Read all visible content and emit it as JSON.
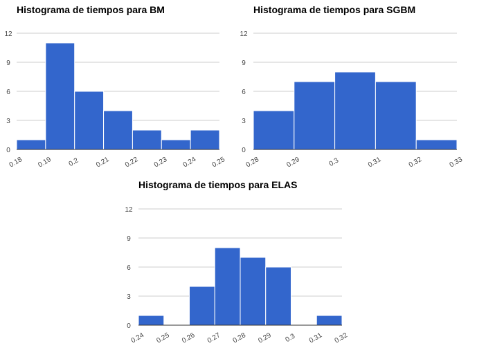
{
  "chart_data": [
    {
      "type": "bar",
      "title": "Histograma de tiempos para BM",
      "x_tick_labels": [
        "0.18",
        "0.19",
        "0.2",
        "0.21",
        "0.22",
        "0.23",
        "0.24",
        "0.25"
      ],
      "y_tick_labels": [
        "0",
        "3",
        "6",
        "9",
        "12"
      ],
      "bins": [
        {
          "from": 0.18,
          "to": 0.19,
          "count": 1
        },
        {
          "from": 0.19,
          "to": 0.2,
          "count": 11
        },
        {
          "from": 0.2,
          "to": 0.21,
          "count": 6
        },
        {
          "from": 0.21,
          "to": 0.22,
          "count": 4
        },
        {
          "from": 0.22,
          "to": 0.23,
          "count": 2
        },
        {
          "from": 0.23,
          "to": 0.24,
          "count": 1
        },
        {
          "from": 0.24,
          "to": 0.25,
          "count": 2
        }
      ],
      "xlim": [
        0.18,
        0.25
      ],
      "ylim": [
        0,
        12
      ],
      "grid": true,
      "color": "#3366cc"
    },
    {
      "type": "bar",
      "title": "Histograma de tiempos para SGBM",
      "x_tick_labels": [
        "0.28",
        "0.29",
        "0.3",
        "0.31",
        "0.32",
        "0.33"
      ],
      "y_tick_labels": [
        "0",
        "3",
        "6",
        "9",
        "12"
      ],
      "bins": [
        {
          "from": 0.28,
          "to": 0.29,
          "count": 4
        },
        {
          "from": 0.29,
          "to": 0.3,
          "count": 7
        },
        {
          "from": 0.3,
          "to": 0.31,
          "count": 8
        },
        {
          "from": 0.31,
          "to": 0.32,
          "count": 7
        },
        {
          "from": 0.32,
          "to": 0.33,
          "count": 1
        }
      ],
      "xlim": [
        0.28,
        0.33
      ],
      "ylim": [
        0,
        12
      ],
      "grid": true,
      "color": "#3366cc"
    },
    {
      "type": "bar",
      "title": "Histograma de tiempos para ELAS",
      "x_tick_labels": [
        "0.24",
        "0.25",
        "0.26",
        "0.27",
        "0.28",
        "0.29",
        "0.3",
        "0.31",
        "0.32"
      ],
      "y_tick_labels": [
        "0",
        "3",
        "6",
        "9",
        "12"
      ],
      "bins": [
        {
          "from": 0.24,
          "to": 0.25,
          "count": 1
        },
        {
          "from": 0.25,
          "to": 0.26,
          "count": 0
        },
        {
          "from": 0.26,
          "to": 0.27,
          "count": 4
        },
        {
          "from": 0.27,
          "to": 0.28,
          "count": 8
        },
        {
          "from": 0.28,
          "to": 0.29,
          "count": 7
        },
        {
          "from": 0.29,
          "to": 0.3,
          "count": 6
        },
        {
          "from": 0.3,
          "to": 0.31,
          "count": 0
        },
        {
          "from": 0.31,
          "to": 0.32,
          "count": 1
        }
      ],
      "xlim": [
        0.24,
        0.32
      ],
      "ylim": [
        0,
        12
      ],
      "grid": true,
      "color": "#3366cc"
    }
  ]
}
